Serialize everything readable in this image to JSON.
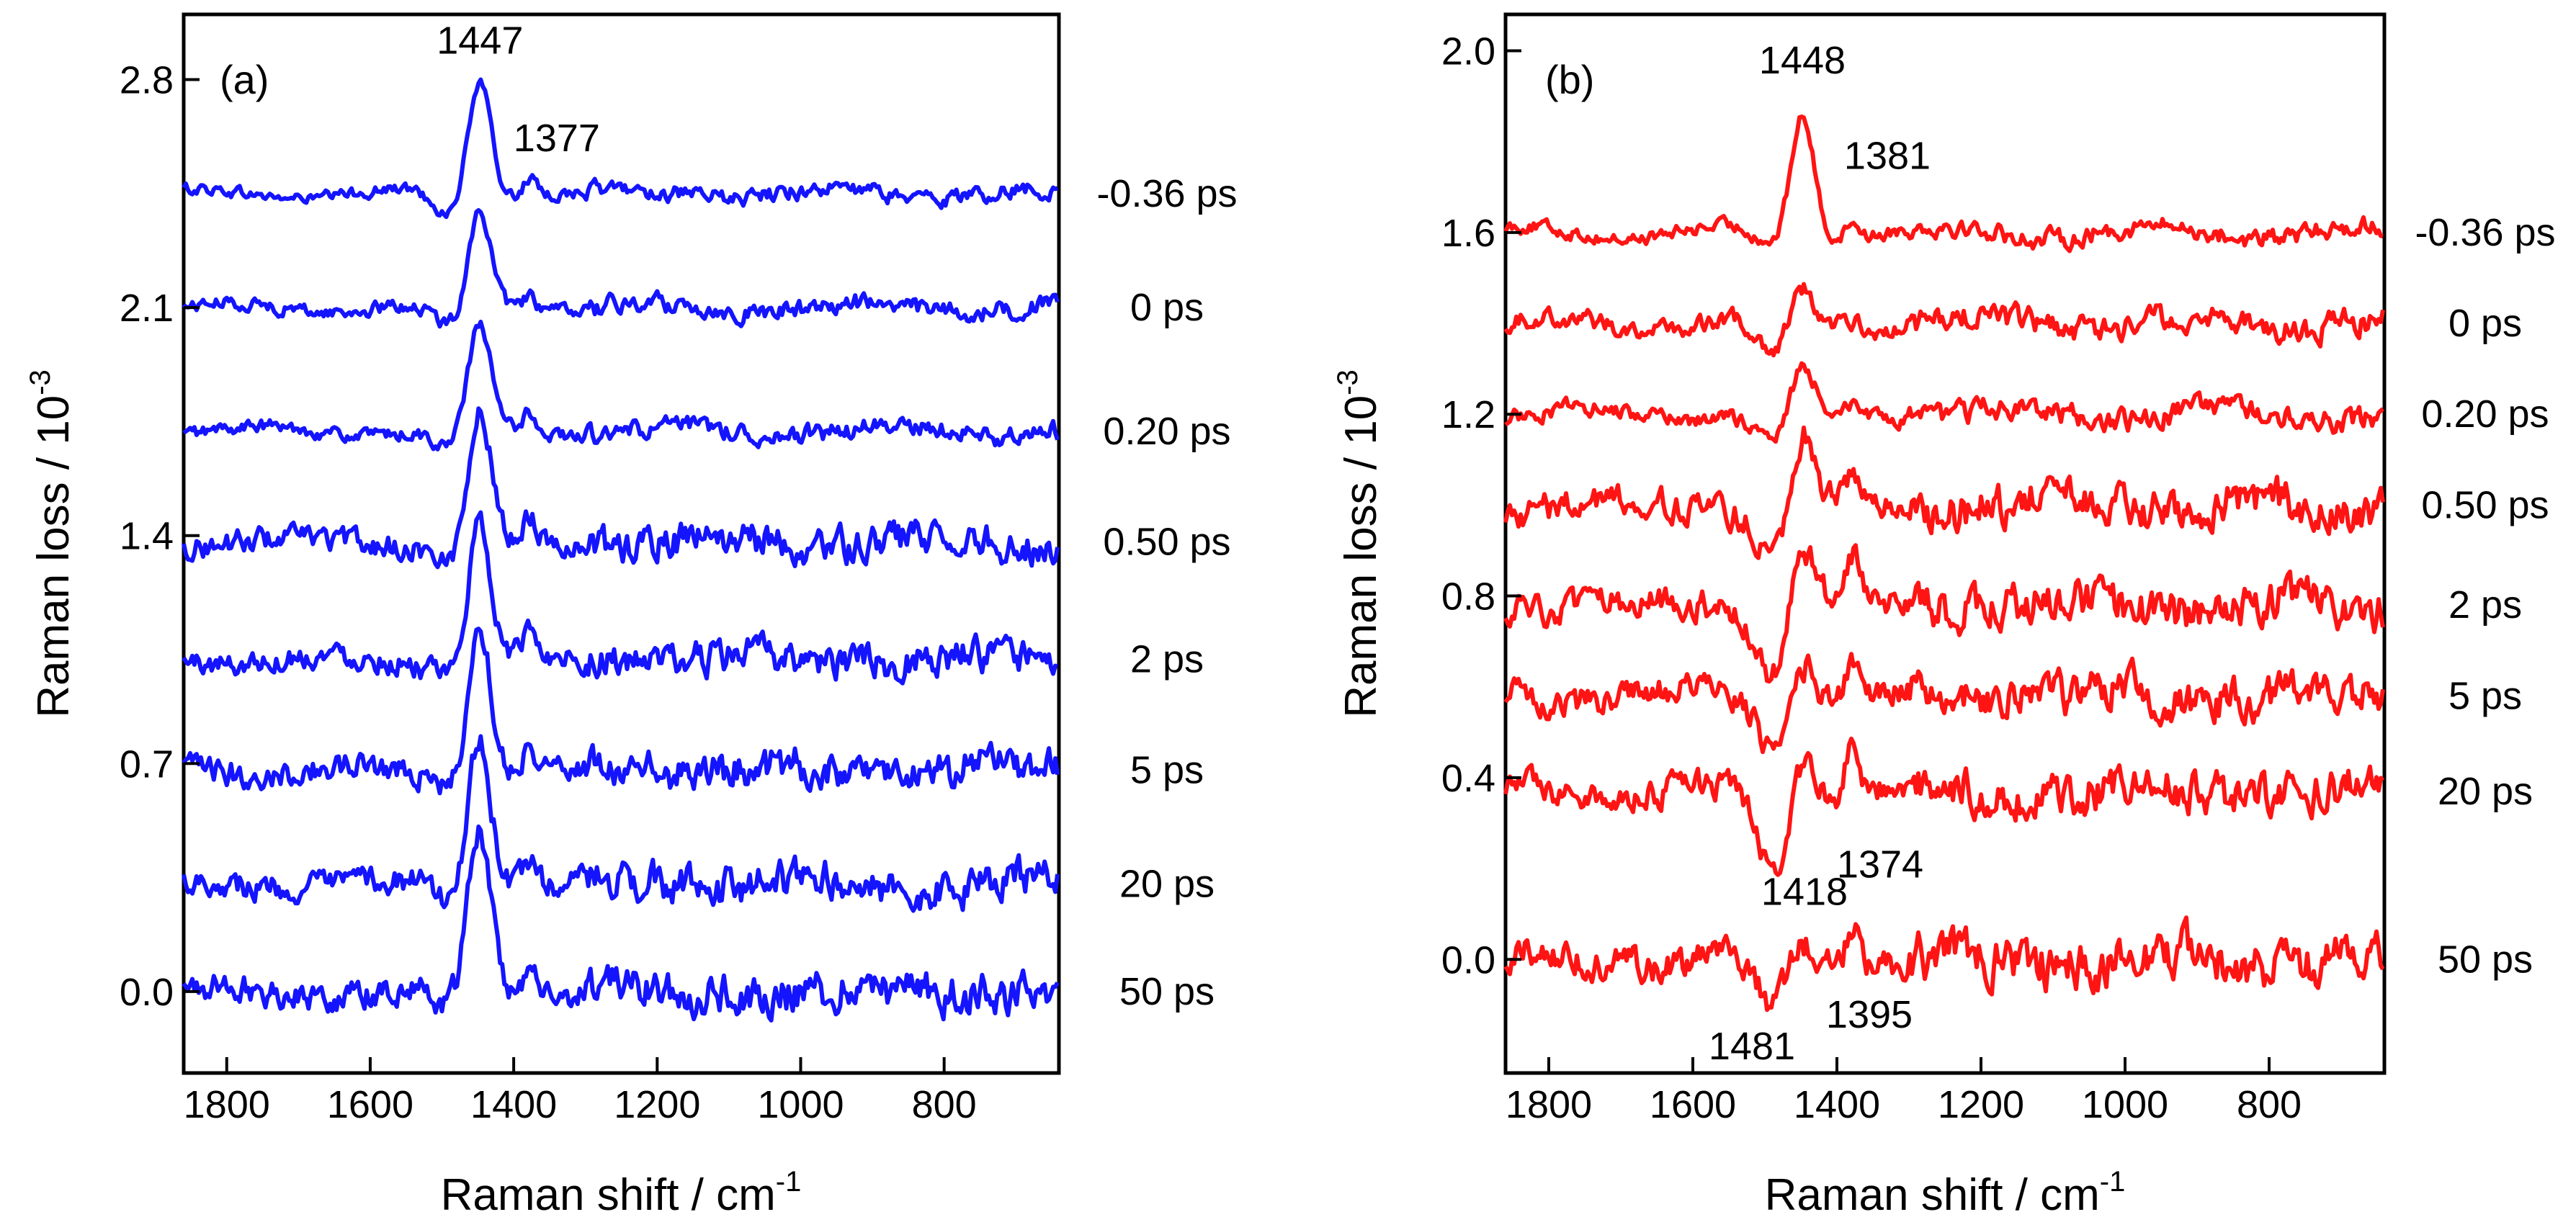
{
  "chart_data": [
    {
      "type": "line",
      "panel_label": "(a)",
      "xlabel": "Raman shift / cm",
      "xlabel_sup": "-1",
      "ylabel": "Raman loss / 10",
      "ylabel_sup": "-3",
      "xlim": [
        1860,
        640
      ],
      "ylim": [
        -0.25,
        3.0
      ],
      "xticks": [
        1800,
        1600,
        1400,
        1200,
        1000,
        800
      ],
      "xtick_labels": [
        "1800",
        "1600",
        "1400",
        "1200",
        "1000",
        "800"
      ],
      "yticks": [
        0.0,
        0.7,
        1.4,
        2.1,
        2.8
      ],
      "ytick_labels": [
        "0.0",
        "0.7",
        "1.4",
        "2.1",
        "2.8"
      ],
      "color": "#1414ff",
      "series": [
        {
          "name": "-0.36 ps",
          "offset": 2.45,
          "peak": 0.36,
          "shoulder": 0.06,
          "dip": -0.07,
          "noise": 0.012
        },
        {
          "name": "0 ps",
          "offset": 2.1,
          "peak": 0.3,
          "shoulder": 0.05,
          "dip": -0.07,
          "noise": 0.014
        },
        {
          "name": "0.20 ps",
          "offset": 1.72,
          "peak": 0.32,
          "shoulder": 0.06,
          "dip": -0.06,
          "noise": 0.014
        },
        {
          "name": "0.50 ps",
          "offset": 1.38,
          "peak": 0.4,
          "shoulder": 0.07,
          "dip": -0.06,
          "noise": 0.025
        },
        {
          "name": "2 ps",
          "offset": 1.02,
          "peak": 0.42,
          "shoulder": 0.08,
          "dip": -0.05,
          "noise": 0.025
        },
        {
          "name": "5 ps",
          "offset": 0.68,
          "peak": 0.45,
          "shoulder": 0.08,
          "dip": -0.05,
          "noise": 0.028
        },
        {
          "name": "20 ps",
          "offset": 0.33,
          "peak": 0.46,
          "shoulder": 0.08,
          "dip": -0.05,
          "noise": 0.028
        },
        {
          "name": "50 ps",
          "offset": 0.0,
          "peak": 0.5,
          "shoulder": 0.07,
          "dip": -0.05,
          "noise": 0.03
        }
      ],
      "annotations": [
        {
          "text": "1447",
          "x": 1447,
          "y": 2.88
        },
        {
          "text": "1377",
          "x": 1340,
          "y": 2.58
        }
      ]
    },
    {
      "type": "line",
      "panel_label": "(b)",
      "xlabel": "Raman shift / cm",
      "xlabel_sup": "-1",
      "ylabel": "Raman loss / 10",
      "ylabel_sup": "-3",
      "xlim": [
        1860,
        640
      ],
      "ylim": [
        -0.25,
        2.08
      ],
      "xticks": [
        1800,
        1600,
        1400,
        1200,
        1000,
        800
      ],
      "xtick_labels": [
        "1800",
        "1600",
        "1400",
        "1200",
        "1000",
        "800"
      ],
      "yticks": [
        0.0,
        0.4,
        0.8,
        1.2,
        1.6,
        2.0
      ],
      "ytick_labels": [
        "0.0",
        "0.4",
        "0.8",
        "1.2",
        "1.6",
        "2.0"
      ],
      "color": "#ff1414",
      "series": [
        {
          "name": "-0.36 ps",
          "offset": 1.6,
          "peak": 0.27,
          "shoulder": 0.04,
          "dip": -0.03,
          "noise": 0.01
        },
        {
          "name": "0 ps",
          "offset": 1.4,
          "peak": 0.08,
          "shoulder": 0.02,
          "dip": -0.07,
          "noise": 0.014
        },
        {
          "name": "0.20 ps",
          "offset": 1.2,
          "peak": 0.1,
          "shoulder": 0.03,
          "dip": -0.07,
          "noise": 0.012
        },
        {
          "name": "0.50 ps",
          "offset": 1.0,
          "peak": 0.16,
          "shoulder": 0.05,
          "dip": -0.1,
          "noise": 0.022
        },
        {
          "name": "2 ps",
          "offset": 0.78,
          "peak": 0.14,
          "shoulder": 0.1,
          "dip": -0.15,
          "noise": 0.022
        },
        {
          "name": "5 ps",
          "offset": 0.58,
          "peak": 0.1,
          "shoulder": 0.08,
          "dip": -0.1,
          "noise": 0.022
        },
        {
          "name": "20 ps",
          "offset": 0.37,
          "peak": 0.08,
          "shoulder": 0.14,
          "dip": -0.17,
          "noise": 0.022
        },
        {
          "name": "50 ps",
          "offset": 0.0,
          "peak": 0.05,
          "shoulder": 0.1,
          "dip": -0.12,
          "noise": 0.025
        }
      ],
      "annotations": [
        {
          "text": "1448",
          "x": 1448,
          "y": 1.95
        },
        {
          "text": "1381",
          "x": 1330,
          "y": 1.74
        },
        {
          "text": "1418",
          "x": 1445,
          "y": 0.12
        },
        {
          "text": "1374",
          "x": 1340,
          "y": 0.18
        },
        {
          "text": "1481",
          "x": 1518,
          "y": -0.22
        },
        {
          "text": "1395",
          "x": 1355,
          "y": -0.15
        }
      ]
    }
  ]
}
